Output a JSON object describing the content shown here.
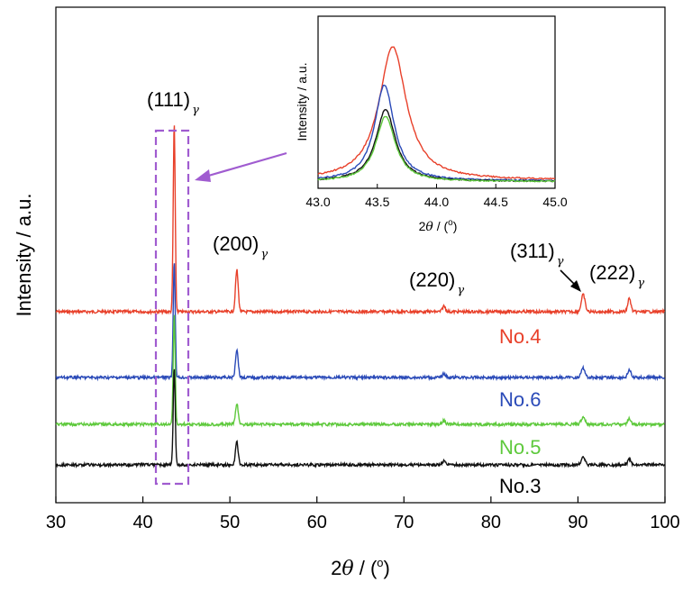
{
  "chart_data": [
    {
      "type": "line",
      "xlabel": "2θ / (°)",
      "xlabel_parts": {
        "pre": "2",
        "theta": "θ",
        "post": " / (",
        "deg": "o",
        "close": ")"
      },
      "ylabel": "Intensity / a.u.",
      "xlim": [
        30,
        100
      ],
      "xticks": [
        30,
        40,
        50,
        60,
        70,
        80,
        90,
        100
      ],
      "yticks": "none",
      "grid": false,
      "peaks": [
        {
          "hkl": "(111)",
          "sub": "γ",
          "x": 43.6
        },
        {
          "hkl": "(200)",
          "sub": "γ",
          "x": 50.8
        },
        {
          "hkl": "(220)",
          "sub": "γ",
          "x": 74.6
        },
        {
          "hkl": "(311)",
          "sub": "γ",
          "x": 90.6
        },
        {
          "hkl": "(222)",
          "sub": "γ",
          "x": 95.9
        }
      ],
      "series": [
        {
          "name": "No.4",
          "color": "#e8402a",
          "peak_heights": [
            1.0,
            0.22,
            0.03,
            0.09,
            0.07
          ]
        },
        {
          "name": "No.6",
          "color": "#2a4ab8",
          "peak_heights": [
            0.62,
            0.15,
            0.02,
            0.05,
            0.04
          ]
        },
        {
          "name": "No.5",
          "color": "#5ec93c",
          "peak_heights": [
            0.58,
            0.11,
            0.02,
            0.04,
            0.03
          ]
        },
        {
          "name": "No.3",
          "color": "#111111",
          "peak_heights": [
            0.52,
            0.12,
            0.02,
            0.04,
            0.03
          ]
        }
      ]
    },
    {
      "type": "line",
      "role": "inset",
      "xlabel": "2θ / (°)",
      "ylabel": "Intensity / a.u.",
      "xlim": [
        43.0,
        45.0
      ],
      "xticks": [
        "43.0",
        "43.5",
        "44.0",
        "44.5",
        "45.0"
      ],
      "grid": false,
      "series": [
        {
          "name": "No.4",
          "color": "#e8402a",
          "peak_x": 43.63,
          "peak_height": 1.0,
          "width": 0.14
        },
        {
          "name": "No.6",
          "color": "#2a4ab8",
          "peak_x": 43.56,
          "peak_height": 0.72,
          "width": 0.1
        },
        {
          "name": "No.3",
          "color": "#111111",
          "peak_x": 43.57,
          "peak_height": 0.54,
          "width": 0.1
        },
        {
          "name": "No.5",
          "color": "#5ec93c",
          "peak_x": 43.57,
          "peak_height": 0.49,
          "width": 0.1
        }
      ]
    }
  ]
}
